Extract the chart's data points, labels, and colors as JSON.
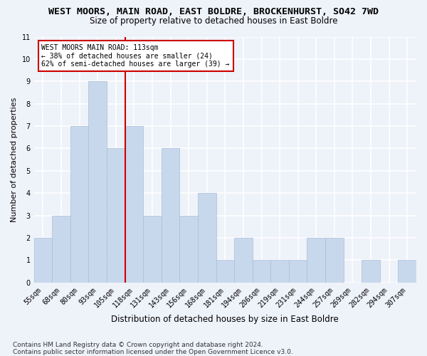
{
  "title": "WEST MOORS, MAIN ROAD, EAST BOLDRE, BROCKENHURST, SO42 7WD",
  "subtitle": "Size of property relative to detached houses in East Boldre",
  "xlabel": "Distribution of detached houses by size in East Boldre",
  "ylabel": "Number of detached properties",
  "categories": [
    "55sqm",
    "68sqm",
    "80sqm",
    "93sqm",
    "105sqm",
    "118sqm",
    "131sqm",
    "143sqm",
    "156sqm",
    "168sqm",
    "181sqm",
    "194sqm",
    "206sqm",
    "219sqm",
    "231sqm",
    "244sqm",
    "257sqm",
    "269sqm",
    "282sqm",
    "294sqm",
    "307sqm"
  ],
  "values": [
    2,
    3,
    7,
    9,
    6,
    7,
    3,
    6,
    3,
    4,
    1,
    2,
    1,
    1,
    1,
    2,
    2,
    0,
    1,
    0,
    1
  ],
  "bar_color": "#c8d8ec",
  "bar_edge_color": "#aabcd8",
  "vline_xindex": 4.5,
  "vline_color": "#cc0000",
  "ylim": [
    0,
    11
  ],
  "yticks": [
    0,
    1,
    2,
    3,
    4,
    5,
    6,
    7,
    8,
    9,
    10,
    11
  ],
  "annotation_line1": "WEST MOORS MAIN ROAD: 113sqm",
  "annotation_line2": "← 38% of detached houses are smaller (24)",
  "annotation_line3": "62% of semi-detached houses are larger (39) →",
  "annotation_box_facecolor": "#ffffff",
  "annotation_box_edgecolor": "#cc0000",
  "footer1": "Contains HM Land Registry data © Crown copyright and database right 2024.",
  "footer2": "Contains public sector information licensed under the Open Government Licence v3.0.",
  "background_color": "#eef2f9",
  "grid_color": "#ffffff",
  "title_fontsize": 9.5,
  "subtitle_fontsize": 8.5,
  "xlabel_fontsize": 8.5,
  "ylabel_fontsize": 8,
  "tick_fontsize": 7,
  "annotation_fontsize": 7,
  "footer_fontsize": 6.5
}
